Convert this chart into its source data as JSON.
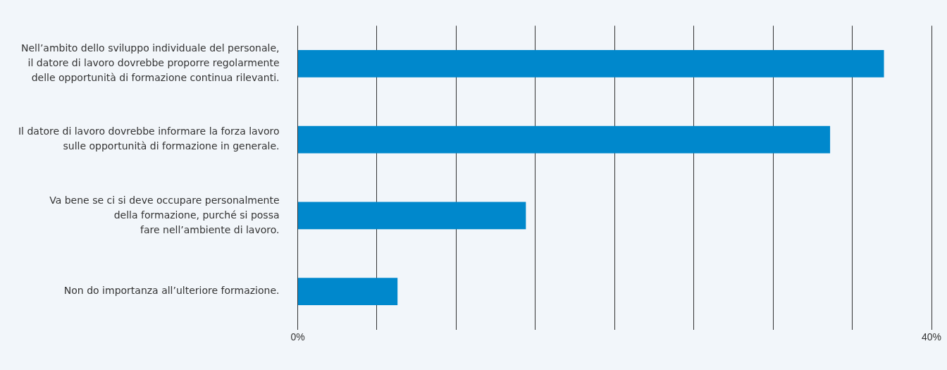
{
  "chart_data": {
    "type": "bar",
    "orientation": "horizontal",
    "categories": [
      "Nell’ambito dello sviluppo individuale del personale,\nil datore di lavoro dovrebbe proporre regolarmente\ndelle opportunità di formazione continua rilevanti.",
      "Il datore di lavoro dovrebbe informare la forza lavoro\nsulle opportunità di formazione in generale.",
      "Va bene se ci si deve occupare personalmente\ndella formazione, purché si possa\nfare nell’ambiente di lavoro.",
      "Non do importanza all’ulteriore formazione."
    ],
    "values": [
      37.0,
      33.6,
      14.4,
      6.3
    ],
    "color": "#0088cc",
    "xlim": [
      0,
      40
    ],
    "xticks": [
      {
        "value": 0,
        "label": "0%"
      },
      {
        "value": 5,
        "label": null
      },
      {
        "value": 10,
        "label": null
      },
      {
        "value": 15,
        "label": null
      },
      {
        "value": 20,
        "label": null
      },
      {
        "value": 25,
        "label": null
      },
      {
        "value": 30,
        "label": null
      },
      {
        "value": 35,
        "label": null
      },
      {
        "value": 40,
        "label": "40%"
      }
    ],
    "grid": "x"
  }
}
